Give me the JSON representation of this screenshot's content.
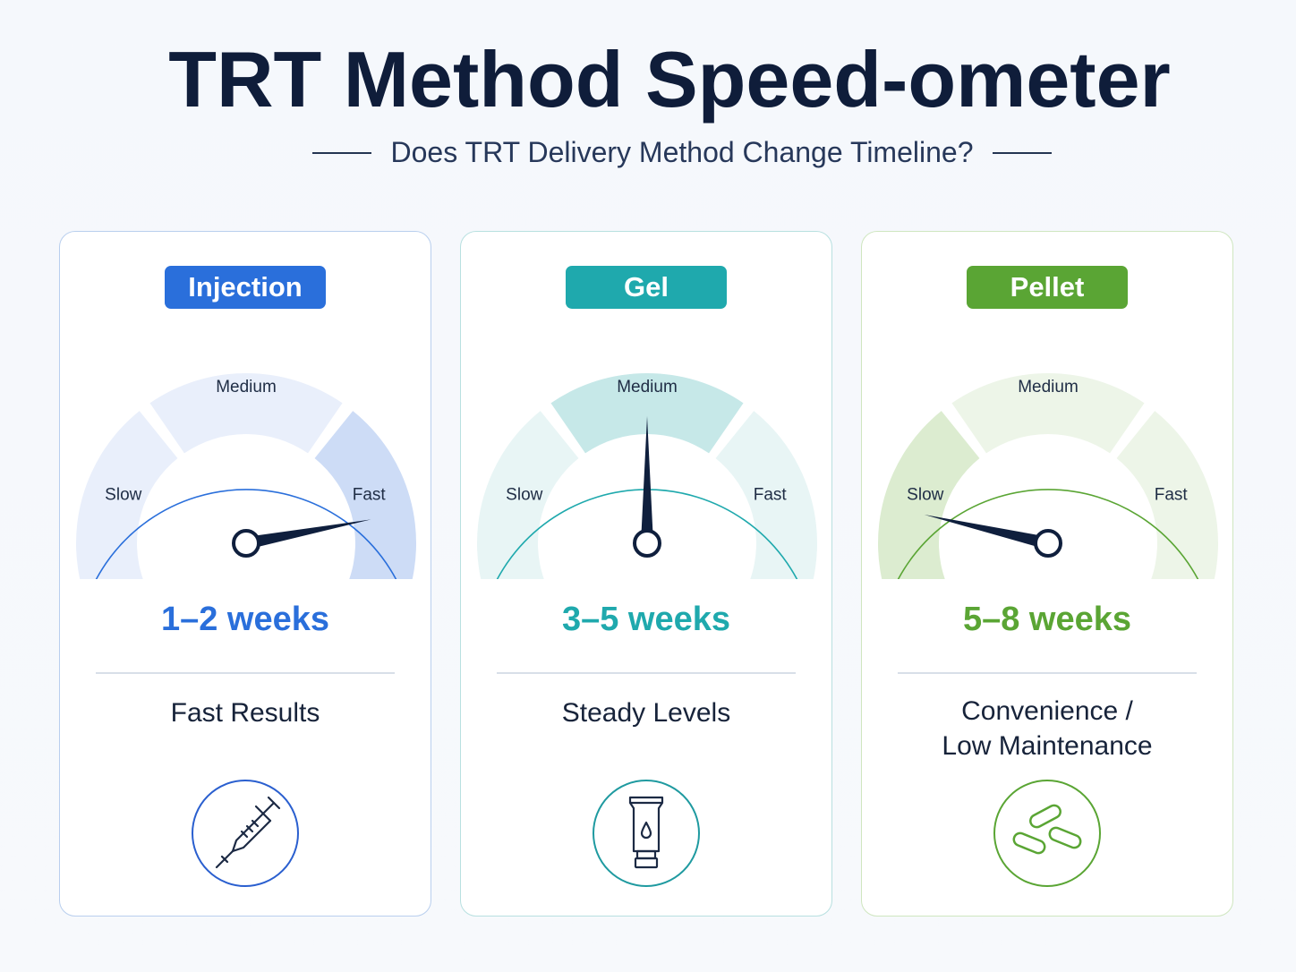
{
  "title": "TRT Method Speed-ometer",
  "subtitle": "Does TRT Delivery Method Change Timeline?",
  "methods": [
    {
      "name": "Injection",
      "accent": "#2a6fdb",
      "zone_light": "#e9effb",
      "zone_highlight": "#cddcf6",
      "highlight_zone": "Fast",
      "gauge_labels": [
        "Slow",
        "Medium",
        "Fast"
      ],
      "needle_level": 0.86,
      "timeline": "1–2 weeks",
      "benefit_lines": [
        "Fast Results"
      ],
      "icon": "syringe-icon"
    },
    {
      "name": "Gel",
      "accent": "#1fa9ad",
      "zone_light": "#e8f5f5",
      "zone_highlight": "#c6e8e8",
      "highlight_zone": "Medium",
      "gauge_labels": [
        "Slow",
        "Medium",
        "Fast"
      ],
      "needle_level": 0.5,
      "timeline": "3–5 weeks",
      "benefit_lines": [
        "Steady Levels"
      ],
      "icon": "gel-tube-icon"
    },
    {
      "name": "Pellet",
      "accent": "#5aa534",
      "zone_light": "#edf5e8",
      "zone_highlight": "#dcecd0",
      "highlight_zone": "Slow",
      "gauge_labels": [
        "Slow",
        "Medium",
        "Fast"
      ],
      "needle_level": 0.15,
      "timeline": "5–8 weeks",
      "benefit_lines": [
        "Convenience /",
        "Low Maintenance"
      ],
      "icon": "pellets-icon"
    }
  ]
}
